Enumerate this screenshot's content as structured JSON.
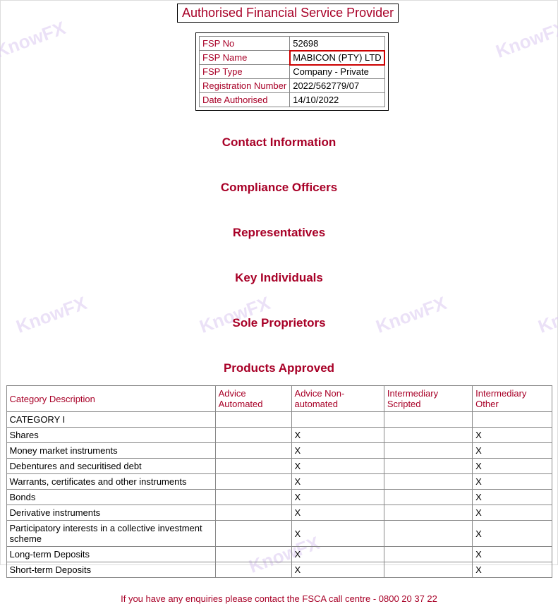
{
  "top_title": "Authorised Financial Service Provider",
  "info": {
    "rows": [
      {
        "label": "FSP No",
        "value": "52698",
        "highlight": false
      },
      {
        "label": "FSP Name",
        "value": "MABICON (PTY) LTD",
        "highlight": true
      },
      {
        "label": "FSP Type",
        "value": "Company - Private",
        "highlight": false
      },
      {
        "label": "Registration Number",
        "value": "2022/562779/07",
        "highlight": false
      },
      {
        "label": "Date Authorised",
        "value": "14/10/2022",
        "highlight": false
      }
    ]
  },
  "sections": [
    "Contact Information",
    "Compliance Officers",
    "Representatives",
    "Key Individuals",
    "Sole Proprietors",
    "Products Approved"
  ],
  "products_table": {
    "columns": [
      "Category Description",
      "Advice Automated",
      "Advice Non-automated",
      "Intermediary Scripted",
      "Intermediary Other"
    ],
    "rows": [
      {
        "desc": "CATEGORY I",
        "c1": "",
        "c2": "",
        "c3": "",
        "c4": ""
      },
      {
        "desc": "Shares",
        "c1": "",
        "c2": "X",
        "c3": "",
        "c4": "X"
      },
      {
        "desc": "Money market instruments",
        "c1": "",
        "c2": "X",
        "c3": "",
        "c4": "X"
      },
      {
        "desc": "Debentures and securitised debt",
        "c1": "",
        "c2": "X",
        "c3": "",
        "c4": "X"
      },
      {
        "desc": "Warrants, certificates and other instruments",
        "c1": "",
        "c2": "X",
        "c3": "",
        "c4": "X"
      },
      {
        "desc": "Bonds",
        "c1": "",
        "c2": "X",
        "c3": "",
        "c4": "X"
      },
      {
        "desc": "Derivative instruments",
        "c1": "",
        "c2": "X",
        "c3": "",
        "c4": "X"
      },
      {
        "desc": "Participatory interests in a collective investment scheme",
        "c1": "",
        "c2": "X",
        "c3": "",
        "c4": "X"
      },
      {
        "desc": "Long-term Deposits",
        "c1": "",
        "c2": "X",
        "c3": "",
        "c4": "X"
      },
      {
        "desc": "Short-term Deposits",
        "c1": "",
        "c2": "X",
        "c3": "",
        "c4": "X"
      }
    ]
  },
  "footer": "If you have any enquiries please contact the FSCA call centre - 0800 20 37 22",
  "watermark_text": "KnowFX",
  "colors": {
    "maroon": "#a80027",
    "watermark": "#d9c5f0",
    "border": "#888888"
  }
}
